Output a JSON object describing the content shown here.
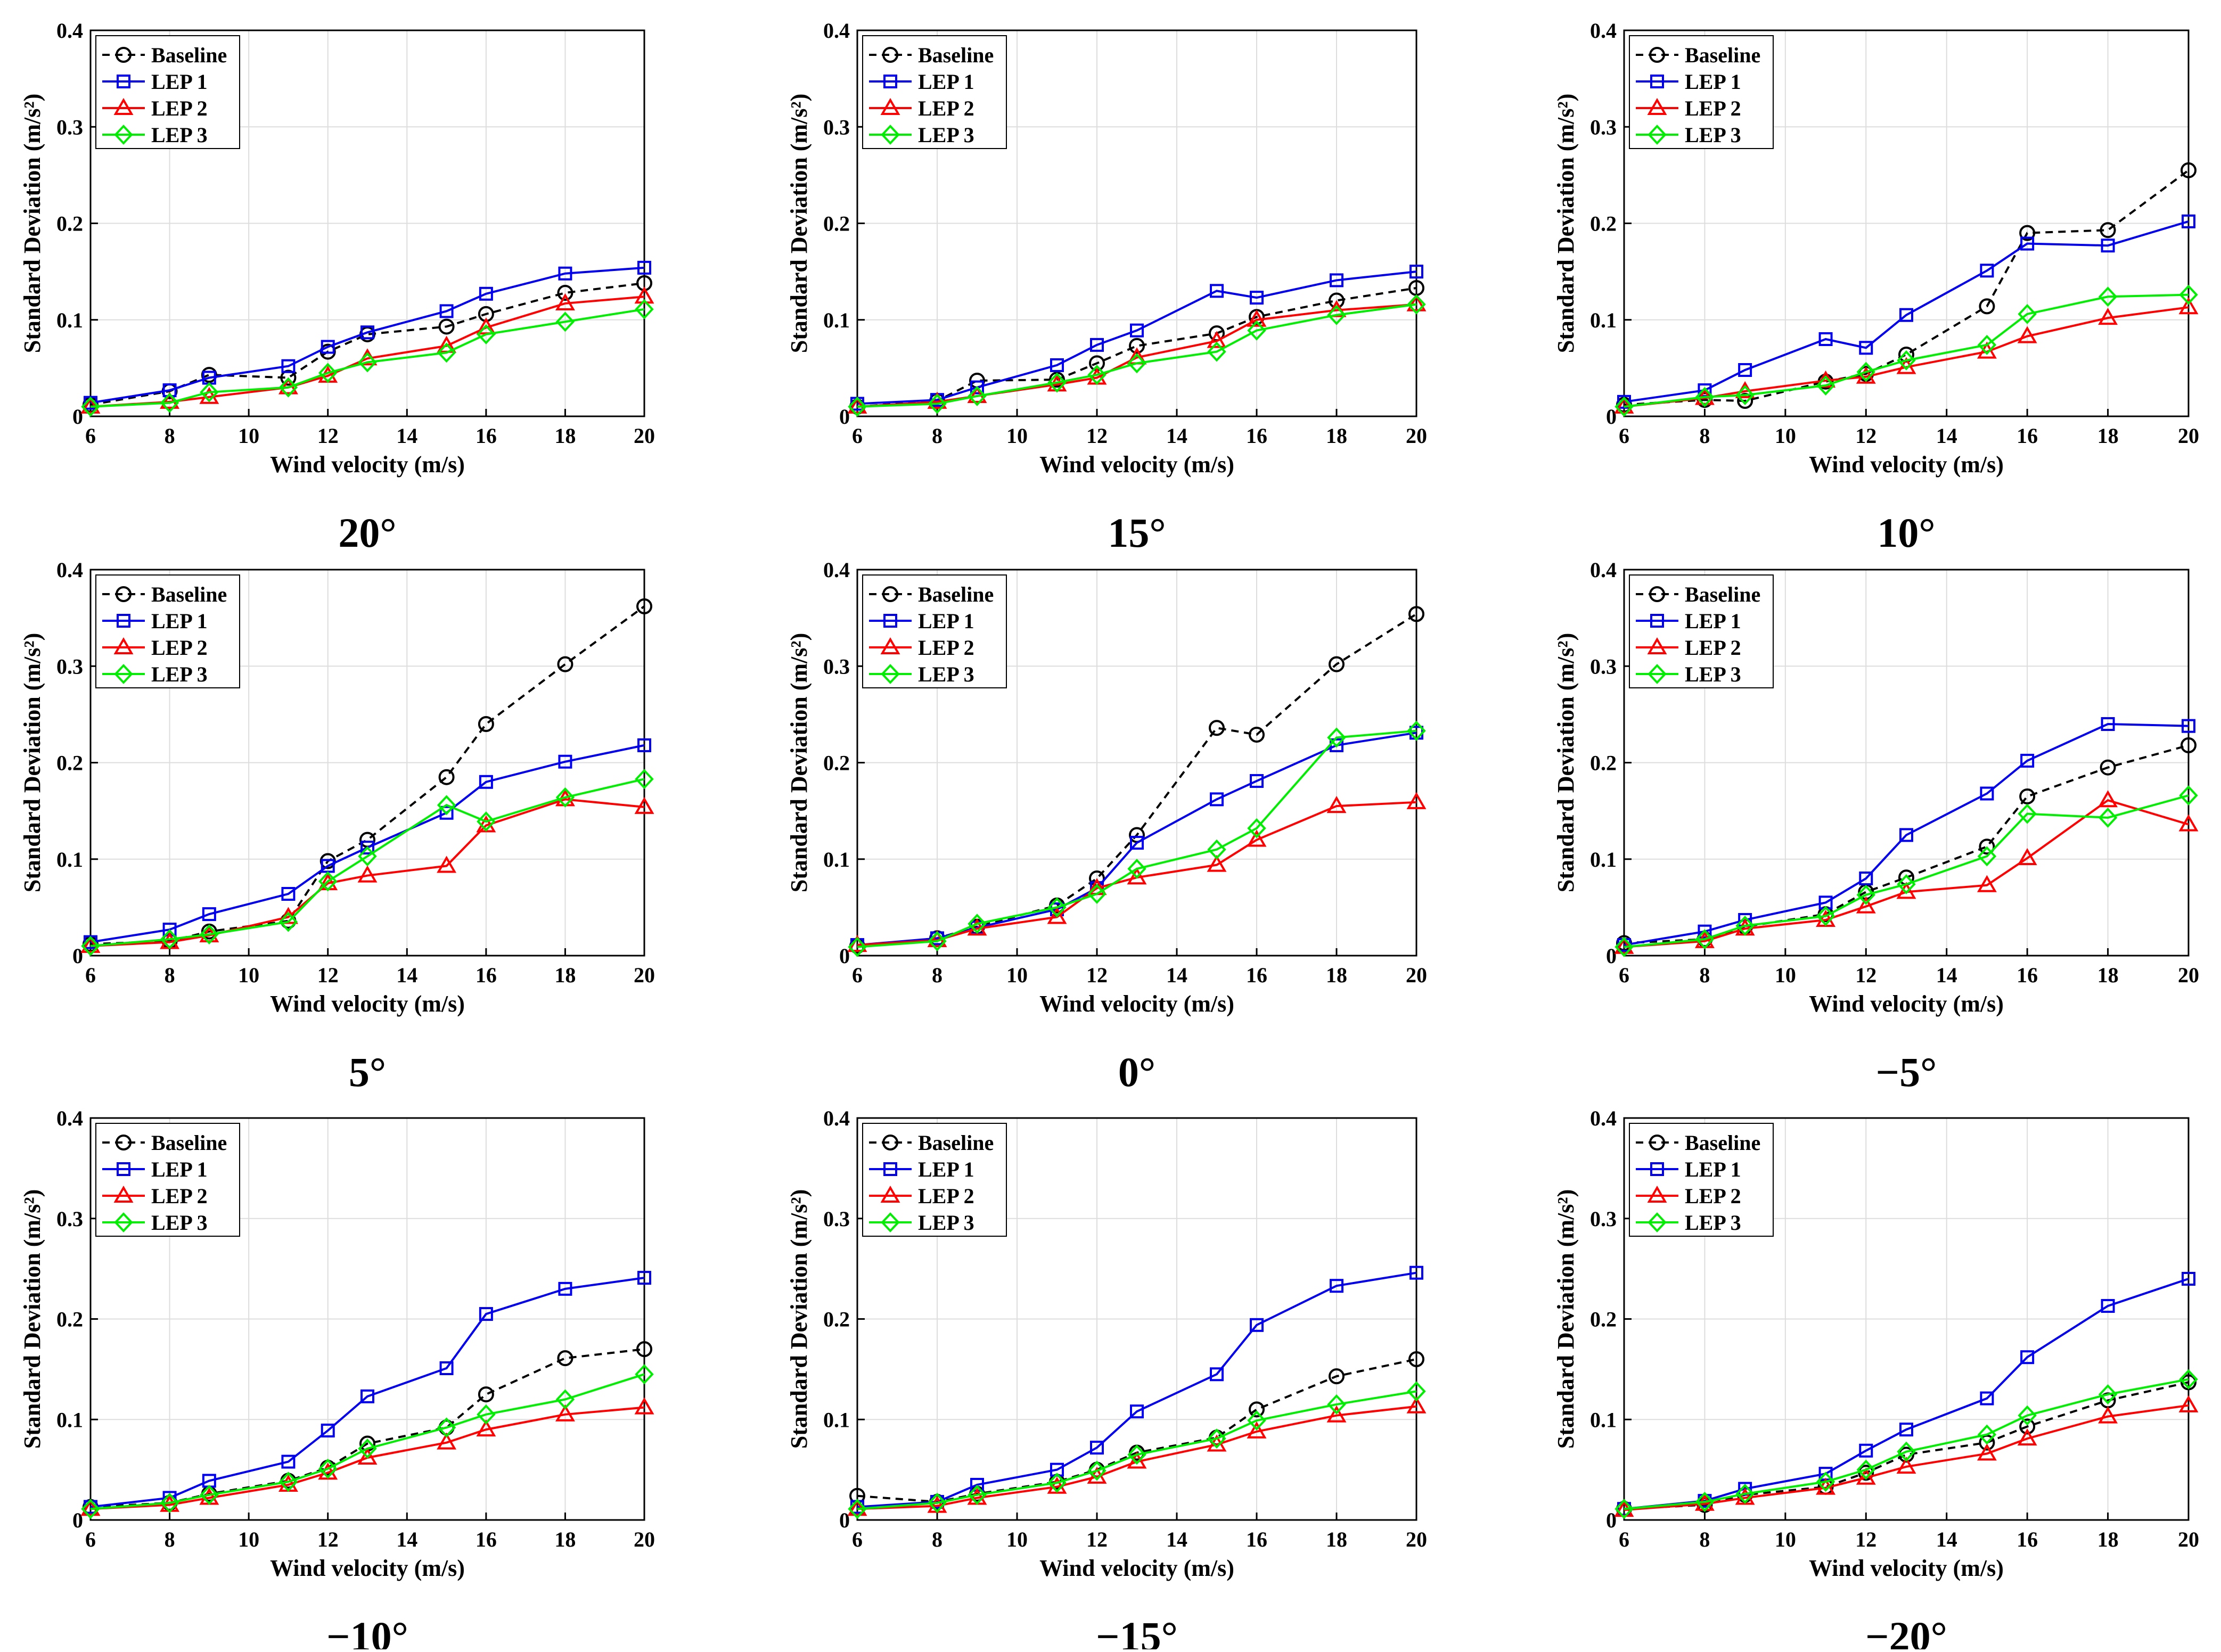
{
  "legend": [
    "Baseline",
    "LEP 1",
    "LEP 2",
    "LEP 3"
  ],
  "colors": {
    "Baseline": "#000000",
    "LEP 1": "#0000ee",
    "LEP 2": "#ff0000",
    "LEP 3": "#00ee00",
    "grid": "#dddddd"
  },
  "chart_data": [
    {
      "type": "line",
      "title": "20°",
      "xlabel": "Wind velocity (m/s)",
      "ylabel": "Standard Deviation (m/s²)",
      "xlim": [
        6,
        20
      ],
      "ylim": [
        0,
        0.4
      ],
      "xticks": [
        6,
        8,
        10,
        12,
        14,
        16,
        18,
        20
      ],
      "yticks": [
        0,
        0.1,
        0.2,
        0.3,
        0.4
      ],
      "ytick_labels": [
        "0",
        "0.1",
        "0.2",
        "0.3",
        "0.4"
      ],
      "x": [
        6,
        8,
        9,
        11,
        12,
        13,
        15,
        16,
        18,
        20
      ],
      "series": [
        {
          "name": "Baseline",
          "values": [
            0.012,
            0.026,
            0.043,
            0.04,
            0.067,
            0.085,
            0.093,
            0.106,
            0.128,
            0.138
          ]
        },
        {
          "name": "LEP 1",
          "values": [
            0.014,
            0.027,
            0.04,
            0.052,
            0.072,
            0.087,
            0.109,
            0.127,
            0.148,
            0.154
          ]
        },
        {
          "name": "LEP 2",
          "values": [
            0.01,
            0.015,
            0.02,
            0.03,
            0.042,
            0.06,
            0.073,
            0.092,
            0.117,
            0.124
          ]
        },
        {
          "name": "LEP 3",
          "values": [
            0.01,
            0.014,
            0.025,
            0.03,
            0.045,
            0.056,
            0.066,
            0.085,
            0.098,
            0.111
          ]
        }
      ]
    },
    {
      "type": "line",
      "title": "15°",
      "xlabel": "Wind velocity (m/s)",
      "ylabel": "Standard Deviation (m/s²)",
      "xlim": [
        6,
        20
      ],
      "ylim": [
        0,
        0.4
      ],
      "xticks": [
        6,
        8,
        10,
        12,
        14,
        16,
        18,
        20
      ],
      "yticks": [
        0,
        0.1,
        0.2,
        0.3,
        0.4
      ],
      "ytick_labels": [
        "0",
        "0.1",
        "0.2",
        "0.3",
        "0.4"
      ],
      "x": [
        6,
        8,
        9,
        11,
        12,
        13,
        15,
        16,
        18,
        20
      ],
      "series": [
        {
          "name": "Baseline",
          "values": [
            0.01,
            0.016,
            0.037,
            0.038,
            0.055,
            0.073,
            0.086,
            0.103,
            0.12,
            0.133
          ]
        },
        {
          "name": "LEP 1",
          "values": [
            0.013,
            0.017,
            0.03,
            0.053,
            0.074,
            0.089,
            0.13,
            0.123,
            0.141,
            0.15
          ]
        },
        {
          "name": "LEP 2",
          "values": [
            0.01,
            0.015,
            0.021,
            0.033,
            0.04,
            0.061,
            0.078,
            0.1,
            0.11,
            0.116
          ]
        },
        {
          "name": "LEP 3",
          "values": [
            0.01,
            0.013,
            0.021,
            0.035,
            0.043,
            0.055,
            0.067,
            0.089,
            0.105,
            0.116
          ]
        }
      ]
    },
    {
      "type": "line",
      "title": "10°",
      "xlabel": "Wind velocity (m/s)",
      "ylabel": "Standard Deviation (m/s²)",
      "xlim": [
        6,
        20
      ],
      "ylim": [
        0,
        0.4
      ],
      "xticks": [
        6,
        8,
        10,
        12,
        14,
        16,
        18,
        20
      ],
      "yticks": [
        0,
        0.1,
        0.2,
        0.3,
        0.4
      ],
      "ytick_labels": [
        "0",
        "0.1",
        "0.2",
        "0.3",
        "0.4"
      ],
      "x": [
        6,
        8,
        9,
        11,
        12,
        13,
        15,
        16,
        18,
        20
      ],
      "series": [
        {
          "name": "Baseline",
          "values": [
            0.012,
            0.017,
            0.016,
            0.036,
            0.044,
            0.064,
            0.114,
            0.19,
            0.193,
            0.255
          ]
        },
        {
          "name": "LEP 1",
          "values": [
            0.015,
            0.027,
            0.048,
            0.08,
            0.071,
            0.105,
            0.151,
            0.179,
            0.177,
            0.202
          ]
        },
        {
          "name": "LEP 2",
          "values": [
            0.01,
            0.019,
            0.026,
            0.037,
            0.041,
            0.051,
            0.067,
            0.083,
            0.102,
            0.113
          ]
        },
        {
          "name": "LEP 3",
          "values": [
            0.01,
            0.02,
            0.022,
            0.032,
            0.046,
            0.058,
            0.074,
            0.106,
            0.124,
            0.126
          ]
        }
      ]
    },
    {
      "type": "line",
      "title": "5°",
      "xlabel": "Wind velocity (m/s)",
      "ylabel": "Standard Deviation (m/s²)",
      "xlim": [
        6,
        20
      ],
      "ylim": [
        0,
        0.4
      ],
      "xticks": [
        6,
        8,
        10,
        12,
        14,
        16,
        18,
        20
      ],
      "yticks": [
        0,
        0.1,
        0.2,
        0.3,
        0.4
      ],
      "ytick_labels": [
        "0",
        "0.1",
        "0.2",
        "0.3",
        "0.4"
      ],
      "x": [
        6,
        8,
        9,
        11,
        12,
        13,
        15,
        16,
        18,
        20
      ],
      "series": [
        {
          "name": "Baseline",
          "values": [
            0.012,
            0.015,
            0.025,
            0.036,
            0.098,
            0.12,
            0.185,
            0.24,
            0.302,
            0.362
          ]
        },
        {
          "name": "LEP 1",
          "values": [
            0.014,
            0.027,
            0.043,
            0.064,
            0.093,
            0.112,
            0.148,
            0.18,
            0.201,
            0.218
          ]
        },
        {
          "name": "LEP 2",
          "values": [
            0.01,
            0.014,
            0.021,
            0.04,
            0.075,
            0.083,
            0.093,
            0.135,
            0.162,
            0.154
          ]
        },
        {
          "name": "LEP 3",
          "values": [
            0.01,
            0.017,
            0.022,
            0.035,
            0.077,
            0.103,
            0.156,
            0.139,
            0.164,
            0.183
          ]
        }
      ]
    },
    {
      "type": "line",
      "title": "0°",
      "xlabel": "Wind velocity (m/s)",
      "ylabel": "Standard Deviation (m/s²)",
      "xlim": [
        6,
        20
      ],
      "ylim": [
        0,
        0.4
      ],
      "xticks": [
        6,
        8,
        10,
        12,
        14,
        16,
        18,
        20
      ],
      "yticks": [
        0,
        0.1,
        0.2,
        0.3,
        0.4
      ],
      "ytick_labels": [
        "0",
        "0.1",
        "0.2",
        "0.3",
        "0.4"
      ],
      "x": [
        6,
        8,
        9,
        11,
        12,
        13,
        15,
        16,
        18,
        20
      ],
      "series": [
        {
          "name": "Baseline",
          "values": [
            0.01,
            0.018,
            0.03,
            0.052,
            0.08,
            0.125,
            0.236,
            0.229,
            0.302,
            0.354
          ]
        },
        {
          "name": "LEP 1",
          "values": [
            0.011,
            0.018,
            0.029,
            0.048,
            0.07,
            0.117,
            0.162,
            0.181,
            0.218,
            0.231
          ]
        },
        {
          "name": "LEP 2",
          "values": [
            0.011,
            0.016,
            0.028,
            0.04,
            0.07,
            0.081,
            0.094,
            0.12,
            0.155,
            0.159
          ]
        },
        {
          "name": "LEP 3",
          "values": [
            0.009,
            0.015,
            0.033,
            0.05,
            0.064,
            0.09,
            0.11,
            0.132,
            0.226,
            0.233
          ]
        }
      ]
    },
    {
      "type": "line",
      "title": "−5°",
      "xlabel": "Wind velocity (m/s)",
      "ylabel": "Standard Deviation (m/s²)",
      "xlim": [
        6,
        20
      ],
      "ylim": [
        0,
        0.4
      ],
      "xticks": [
        6,
        8,
        10,
        12,
        14,
        16,
        18,
        20
      ],
      "yticks": [
        0,
        0.1,
        0.2,
        0.3,
        0.4
      ],
      "ytick_labels": [
        "0",
        "0.1",
        "0.2",
        "0.3",
        "0.4"
      ],
      "x": [
        6,
        8,
        9,
        11,
        12,
        13,
        15,
        16,
        18,
        20
      ],
      "series": [
        {
          "name": "Baseline",
          "values": [
            0.013,
            0.017,
            0.03,
            0.043,
            0.066,
            0.081,
            0.113,
            0.165,
            0.195,
            0.218
          ]
        },
        {
          "name": "LEP 1",
          "values": [
            0.011,
            0.025,
            0.037,
            0.055,
            0.08,
            0.125,
            0.168,
            0.202,
            0.24,
            0.238
          ]
        },
        {
          "name": "LEP 2",
          "values": [
            0.009,
            0.015,
            0.028,
            0.037,
            0.051,
            0.066,
            0.073,
            0.101,
            0.161,
            0.136
          ]
        },
        {
          "name": "LEP 3",
          "values": [
            0.009,
            0.017,
            0.031,
            0.041,
            0.063,
            0.074,
            0.103,
            0.147,
            0.143,
            0.166
          ]
        }
      ]
    },
    {
      "type": "line",
      "title": "−10°",
      "xlabel": "Wind velocity (m/s)",
      "ylabel": "Standard Deviation (m/s²)",
      "xlim": [
        6,
        20
      ],
      "ylim": [
        0,
        0.4
      ],
      "xticks": [
        6,
        8,
        10,
        12,
        14,
        16,
        18,
        20
      ],
      "yticks": [
        0,
        0.1,
        0.2,
        0.3,
        0.4
      ],
      "ytick_labels": [
        "0",
        "0.1",
        "0.2",
        "0.3",
        "0.4"
      ],
      "x": [
        6,
        8,
        9,
        11,
        12,
        13,
        15,
        16,
        18,
        20
      ],
      "series": [
        {
          "name": "Baseline",
          "values": [
            0.013,
            0.017,
            0.026,
            0.039,
            0.052,
            0.076,
            0.092,
            0.125,
            0.161,
            0.17
          ]
        },
        {
          "name": "LEP 1",
          "values": [
            0.013,
            0.022,
            0.039,
            0.058,
            0.089,
            0.123,
            0.151,
            0.205,
            0.23,
            0.241
          ]
        },
        {
          "name": "LEP 2",
          "values": [
            0.011,
            0.015,
            0.022,
            0.035,
            0.047,
            0.062,
            0.077,
            0.09,
            0.105,
            0.112
          ]
        },
        {
          "name": "LEP 3",
          "values": [
            0.011,
            0.017,
            0.025,
            0.038,
            0.051,
            0.071,
            0.092,
            0.105,
            0.12,
            0.145
          ]
        }
      ]
    },
    {
      "type": "line",
      "title": "−15°",
      "xlabel": "Wind velocity (m/s)",
      "ylabel": "Standard Deviation (m/s²)",
      "xlim": [
        6,
        20
      ],
      "ylim": [
        0,
        0.4
      ],
      "xticks": [
        6,
        8,
        10,
        12,
        14,
        16,
        18,
        20
      ],
      "yticks": [
        0,
        0.1,
        0.2,
        0.3,
        0.4
      ],
      "ytick_labels": [
        "0",
        "0.1",
        "0.2",
        "0.3",
        "0.4"
      ],
      "x": [
        6,
        8,
        9,
        11,
        12,
        13,
        15,
        16,
        18,
        20
      ],
      "series": [
        {
          "name": "Baseline",
          "values": [
            0.024,
            0.018,
            0.026,
            0.038,
            0.05,
            0.067,
            0.082,
            0.11,
            0.143,
            0.16
          ]
        },
        {
          "name": "LEP 1",
          "values": [
            0.013,
            0.018,
            0.035,
            0.05,
            0.072,
            0.108,
            0.145,
            0.194,
            0.233,
            0.246
          ]
        },
        {
          "name": "LEP 2",
          "values": [
            0.011,
            0.014,
            0.022,
            0.033,
            0.043,
            0.058,
            0.075,
            0.088,
            0.104,
            0.113
          ]
        },
        {
          "name": "LEP 3",
          "values": [
            0.011,
            0.017,
            0.025,
            0.037,
            0.049,
            0.065,
            0.081,
            0.099,
            0.115,
            0.128
          ]
        }
      ]
    },
    {
      "type": "line",
      "title": "−20°",
      "xlabel": "Wind velocity (m/s)",
      "ylabel": "Standard Deviation (m/s²)",
      "xlim": [
        6,
        20
      ],
      "ylim": [
        0,
        0.4
      ],
      "xticks": [
        6,
        8,
        10,
        12,
        14,
        16,
        18,
        20
      ],
      "yticks": [
        0,
        0.1,
        0.2,
        0.3,
        0.4
      ],
      "ytick_labels": [
        "0",
        "0.1",
        "0.2",
        "0.3",
        "0.4"
      ],
      "x": [
        6,
        8,
        9,
        11,
        12,
        13,
        15,
        16,
        18,
        20
      ],
      "series": [
        {
          "name": "Baseline",
          "values": [
            0.011,
            0.015,
            0.025,
            0.033,
            0.047,
            0.065,
            0.077,
            0.093,
            0.119,
            0.137
          ]
        },
        {
          "name": "LEP 1",
          "values": [
            0.011,
            0.019,
            0.031,
            0.046,
            0.069,
            0.09,
            0.121,
            0.162,
            0.213,
            0.24
          ]
        },
        {
          "name": "LEP 2",
          "values": [
            0.01,
            0.016,
            0.022,
            0.032,
            0.042,
            0.053,
            0.066,
            0.081,
            0.103,
            0.114
          ]
        },
        {
          "name": "LEP 3",
          "values": [
            0.011,
            0.018,
            0.026,
            0.038,
            0.05,
            0.068,
            0.085,
            0.104,
            0.125,
            0.14
          ]
        }
      ]
    }
  ]
}
